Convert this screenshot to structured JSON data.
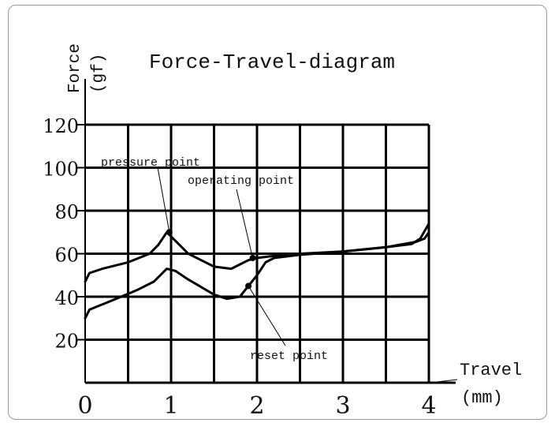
{
  "chart_data": {
    "type": "line",
    "title": "Force-Travel-diagram",
    "ylabel": "Force",
    "ylabel_unit": "(gf)",
    "xlabel": "Travel",
    "xlabel_unit": "(mm)",
    "xlim": [
      0,
      4
    ],
    "ylim": [
      0,
      120
    ],
    "grid": true,
    "x_ticks": [
      0,
      1,
      2,
      3,
      4
    ],
    "y_ticks": [
      20,
      40,
      60,
      80,
      100,
      120
    ],
    "series": [
      {
        "x": [
          0,
          0.05,
          0.2,
          0.5,
          0.75,
          0.85,
          0.95,
          1.05,
          1.2,
          1.5,
          1.7,
          1.8,
          1.9,
          2.0,
          2.2,
          2.5,
          3.0,
          3.5,
          3.8,
          3.9,
          4.0
        ],
        "values": [
          47,
          51,
          53,
          56,
          60,
          64,
          70,
          66,
          60,
          54,
          53,
          55,
          57,
          58,
          59,
          60,
          61,
          63,
          64.5,
          67,
          74
        ]
      },
      {
        "x": [
          0,
          0.05,
          0.3,
          0.6,
          0.8,
          0.95,
          1.05,
          1.2,
          1.5,
          1.65,
          1.8,
          1.9,
          2.0,
          2.1,
          2.2,
          2.5,
          3.0,
          3.5,
          3.85,
          3.95,
          4.0
        ],
        "values": [
          30,
          34,
          38,
          43,
          47,
          53,
          52,
          48,
          41,
          39,
          40,
          45,
          50,
          56,
          58,
          59.5,
          61,
          63,
          65.5,
          67,
          70
        ]
      }
    ],
    "annotations": [
      {
        "text": "pressure point",
        "x": 0.98,
        "y": 70
      },
      {
        "text": "operating point",
        "x": 1.95,
        "y": 58
      },
      {
        "text": "reset point",
        "x": 1.9,
        "y": 45
      }
    ]
  }
}
